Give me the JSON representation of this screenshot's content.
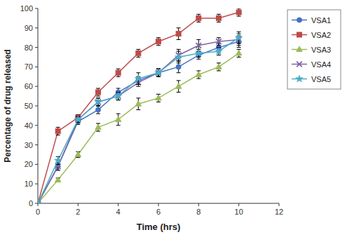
{
  "chart_data": {
    "type": "line",
    "xlabel": "Time (hrs)",
    "ylabel": "Percentage of drug released",
    "x": [
      0,
      1,
      2,
      3,
      4,
      5,
      6,
      7,
      8,
      9,
      10
    ],
    "series": [
      {
        "name": "VSA1",
        "color": "#4472C4",
        "marker": "circle",
        "values": [
          0,
          19,
          42,
          48,
          57,
          63,
          67,
          70,
          76,
          80,
          83
        ],
        "errors": [
          0,
          2,
          1.5,
          2,
          2,
          2,
          2,
          3,
          2,
          2,
          3
        ]
      },
      {
        "name": "VSA2",
        "color": "#BE4B48",
        "marker": "square",
        "values": [
          0,
          37,
          44,
          57,
          67,
          77,
          83,
          87,
          95,
          95,
          98
        ],
        "errors": [
          0,
          2,
          1.5,
          2,
          2,
          2,
          2,
          3,
          2,
          2,
          2
        ]
      },
      {
        "name": "VSA3",
        "color": "#9BBB59",
        "marker": "triangle",
        "values": [
          0,
          12,
          25,
          39,
          43,
          51,
          54,
          60,
          66,
          70,
          77
        ],
        "errors": [
          0,
          1,
          1.5,
          2,
          3,
          3,
          2,
          3,
          2,
          2,
          2
        ]
      },
      {
        "name": "VSA4",
        "color": "#8064A2",
        "marker": "x",
        "values": [
          0,
          19,
          43,
          52,
          55,
          62,
          67,
          76,
          81,
          83,
          84
        ],
        "errors": [
          0,
          2,
          1.5,
          2,
          2,
          2,
          2,
          3,
          3,
          2,
          3
        ]
      },
      {
        "name": "VSA5",
        "color": "#4BACC6",
        "marker": "star",
        "values": [
          0,
          22,
          43,
          52,
          55,
          64,
          67,
          75,
          77,
          78,
          85
        ],
        "errors": [
          0,
          2,
          1.5,
          2,
          2,
          3,
          2,
          3,
          2,
          2,
          3
        ]
      }
    ],
    "xlim": [
      0,
      12
    ],
    "ylim": [
      0,
      100
    ],
    "xticks": [
      0,
      2,
      4,
      6,
      8,
      10,
      12
    ],
    "yticks": [
      0,
      10,
      20,
      30,
      40,
      50,
      60,
      70,
      80,
      90,
      100
    ],
    "grid": false,
    "legend": "right"
  }
}
